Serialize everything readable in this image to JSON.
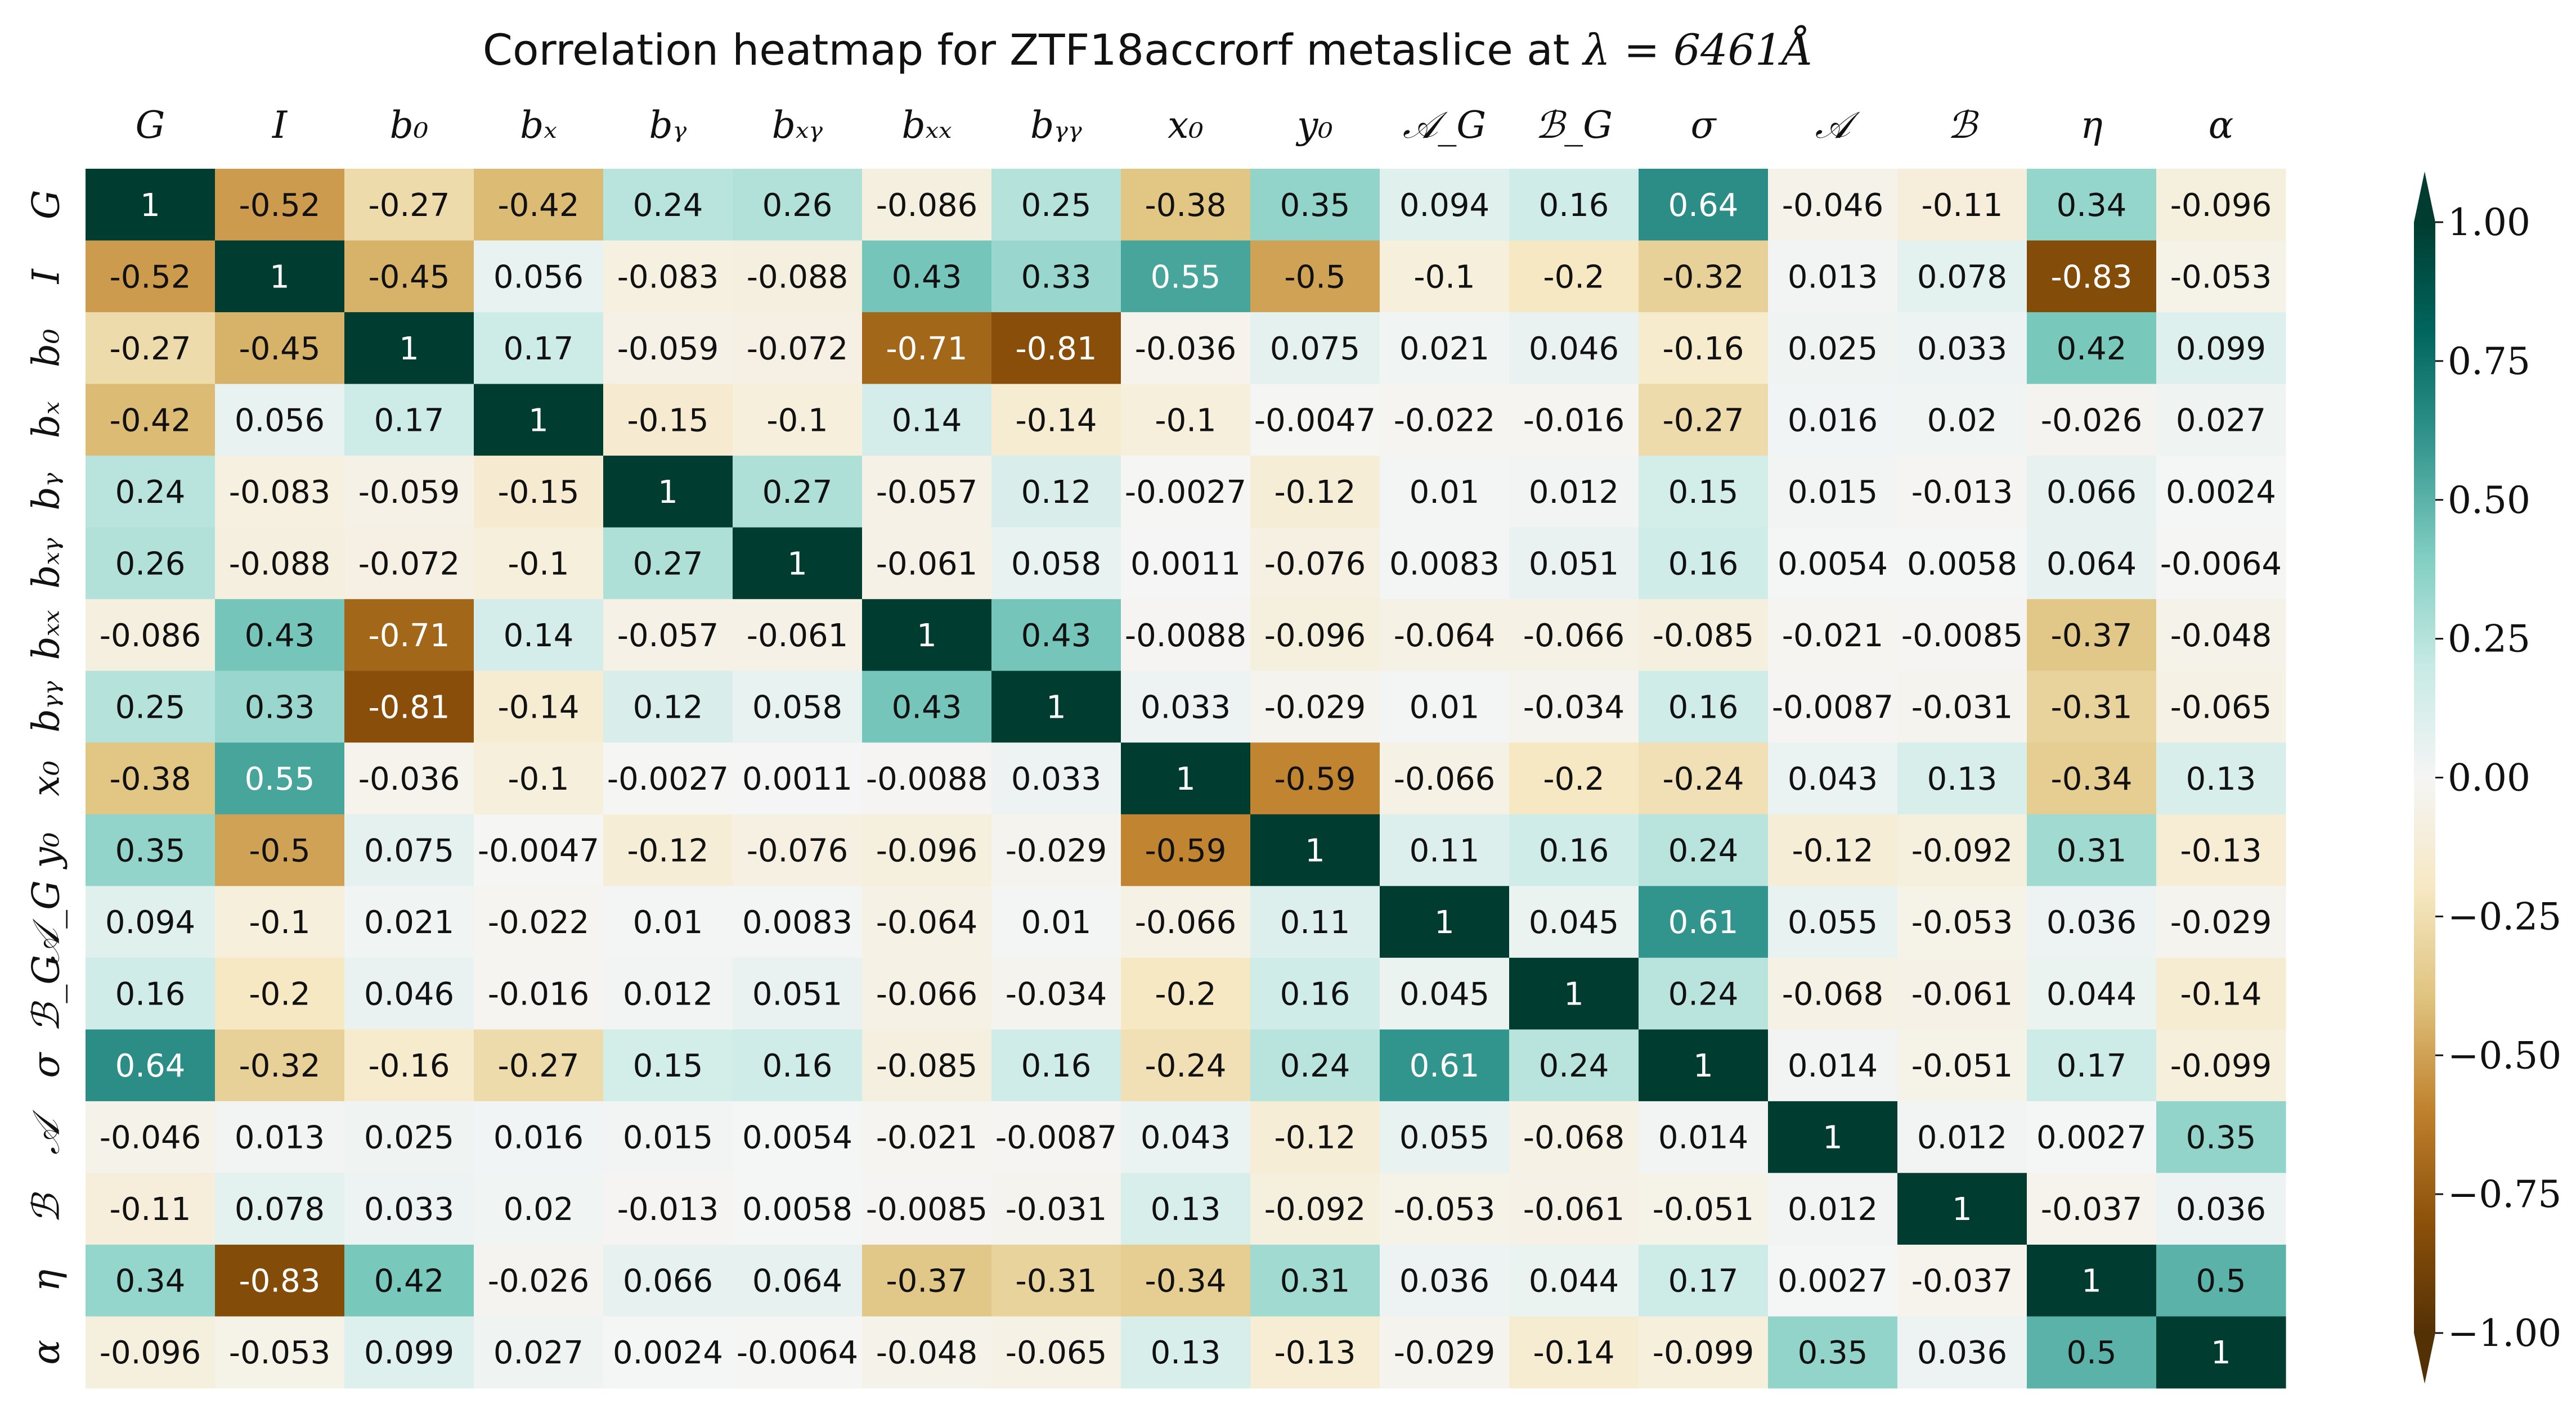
{
  "chart_data": {
    "type": "heatmap",
    "title": "Correlation heatmap for ZTF18accrorf metaslice at λ = 6461Å",
    "title_text": "Correlation heatmap for ZTF18accrorf metaslice at ",
    "title_math": "λ = 6461Å",
    "labels": [
      "G",
      "I",
      "b₀",
      "bₓ",
      "bᵧ",
      "bₓᵧ",
      "bₓₓ",
      "bᵧᵧ",
      "x₀",
      "y₀",
      "𝒜_G",
      "ℬ_G",
      "σ",
      "𝒜",
      "ℬ",
      "η",
      "α"
    ],
    "matrix": [
      [
        1,
        -0.52,
        -0.27,
        -0.42,
        0.24,
        0.26,
        -0.086,
        0.25,
        -0.38,
        0.35,
        0.094,
        0.16,
        0.64,
        -0.046,
        -0.11,
        0.34,
        -0.096
      ],
      [
        -0.52,
        1,
        -0.45,
        0.056,
        -0.083,
        -0.088,
        0.43,
        0.33,
        0.55,
        -0.5,
        -0.1,
        -0.2,
        -0.32,
        0.013,
        0.078,
        -0.83,
        -0.053
      ],
      [
        -0.27,
        -0.45,
        1,
        0.17,
        -0.059,
        -0.072,
        -0.71,
        -0.81,
        -0.036,
        0.075,
        0.021,
        0.046,
        -0.16,
        0.025,
        0.033,
        0.42,
        0.099
      ],
      [
        -0.42,
        0.056,
        0.17,
        1,
        -0.15,
        -0.1,
        0.14,
        -0.14,
        -0.1,
        -0.0047,
        -0.022,
        -0.016,
        -0.27,
        0.016,
        0.02,
        -0.026,
        0.027
      ],
      [
        0.24,
        -0.083,
        -0.059,
        -0.15,
        1,
        0.27,
        -0.057,
        0.12,
        -0.0027,
        -0.12,
        0.01,
        0.012,
        0.15,
        0.015,
        -0.013,
        0.066,
        0.0024
      ],
      [
        0.26,
        -0.088,
        -0.072,
        -0.1,
        0.27,
        1,
        -0.061,
        0.058,
        0.0011,
        -0.076,
        0.0083,
        0.051,
        0.16,
        0.0054,
        0.0058,
        0.064,
        -0.0064
      ],
      [
        -0.086,
        0.43,
        -0.71,
        0.14,
        -0.057,
        -0.061,
        1,
        0.43,
        -0.0088,
        -0.096,
        -0.064,
        -0.066,
        -0.085,
        -0.021,
        -0.0085,
        -0.37,
        -0.048
      ],
      [
        0.25,
        0.33,
        -0.81,
        -0.14,
        0.12,
        0.058,
        0.43,
        1,
        0.033,
        -0.029,
        0.01,
        -0.034,
        0.16,
        -0.0087,
        -0.031,
        -0.31,
        -0.065
      ],
      [
        -0.38,
        0.55,
        -0.036,
        -0.1,
        -0.0027,
        0.0011,
        -0.0088,
        0.033,
        1,
        -0.59,
        -0.066,
        -0.2,
        -0.24,
        0.043,
        0.13,
        -0.34,
        0.13
      ],
      [
        0.35,
        -0.5,
        0.075,
        -0.0047,
        -0.12,
        -0.076,
        -0.096,
        -0.029,
        -0.59,
        1,
        0.11,
        0.16,
        0.24,
        -0.12,
        -0.092,
        0.31,
        -0.13
      ],
      [
        0.094,
        -0.1,
        0.021,
        -0.022,
        0.01,
        0.0083,
        -0.064,
        0.01,
        -0.066,
        0.11,
        1,
        0.045,
        0.61,
        0.055,
        -0.053,
        0.036,
        -0.029
      ],
      [
        0.16,
        -0.2,
        0.046,
        -0.016,
        0.012,
        0.051,
        -0.066,
        -0.034,
        -0.2,
        0.16,
        0.045,
        1,
        0.24,
        -0.068,
        -0.061,
        0.044,
        -0.14
      ],
      [
        0.64,
        -0.32,
        -0.16,
        -0.27,
        0.15,
        0.16,
        -0.085,
        0.16,
        -0.24,
        0.24,
        0.61,
        0.24,
        1,
        0.014,
        -0.051,
        0.17,
        -0.099
      ],
      [
        -0.046,
        0.013,
        0.025,
        0.016,
        0.015,
        0.0054,
        -0.021,
        -0.0087,
        0.043,
        -0.12,
        0.055,
        -0.068,
        0.014,
        1,
        0.012,
        0.0027,
        0.35
      ],
      [
        -0.11,
        0.078,
        0.033,
        0.02,
        -0.013,
        0.0058,
        -0.0085,
        -0.031,
        0.13,
        -0.092,
        -0.053,
        -0.061,
        -0.051,
        0.012,
        1,
        -0.037,
        0.036
      ],
      [
        0.34,
        -0.83,
        0.42,
        -0.026,
        0.066,
        0.064,
        -0.37,
        -0.31,
        -0.34,
        0.31,
        0.036,
        0.044,
        0.17,
        0.0027,
        -0.037,
        1,
        0.5
      ],
      [
        -0.096,
        -0.053,
        0.099,
        0.027,
        0.0024,
        -0.0064,
        -0.048,
        -0.065,
        0.13,
        -0.13,
        -0.029,
        -0.14,
        -0.099,
        0.35,
        0.036,
        0.5,
        1
      ]
    ],
    "colorbar": {
      "range": [
        -1,
        1
      ],
      "ticks": [
        1,
        0.75,
        0.5,
        0.25,
        0,
        -0.25,
        -0.5,
        -0.75,
        -1
      ],
      "tick_labels": [
        "1.00",
        "0.75",
        "0.50",
        "0.25",
        "0.00",
        "−0.25",
        "−0.50",
        "−0.75",
        "−1.00"
      ],
      "colormap": "BrBG",
      "extend": "both"
    },
    "colors": {
      "stops": [
        "#543005",
        "#8c510a",
        "#bf812d",
        "#dfc27d",
        "#f6e8c3",
        "#f5f5f5",
        "#c7eae5",
        "#80cdc1",
        "#35978f",
        "#01665e",
        "#003c30"
      ]
    }
  }
}
